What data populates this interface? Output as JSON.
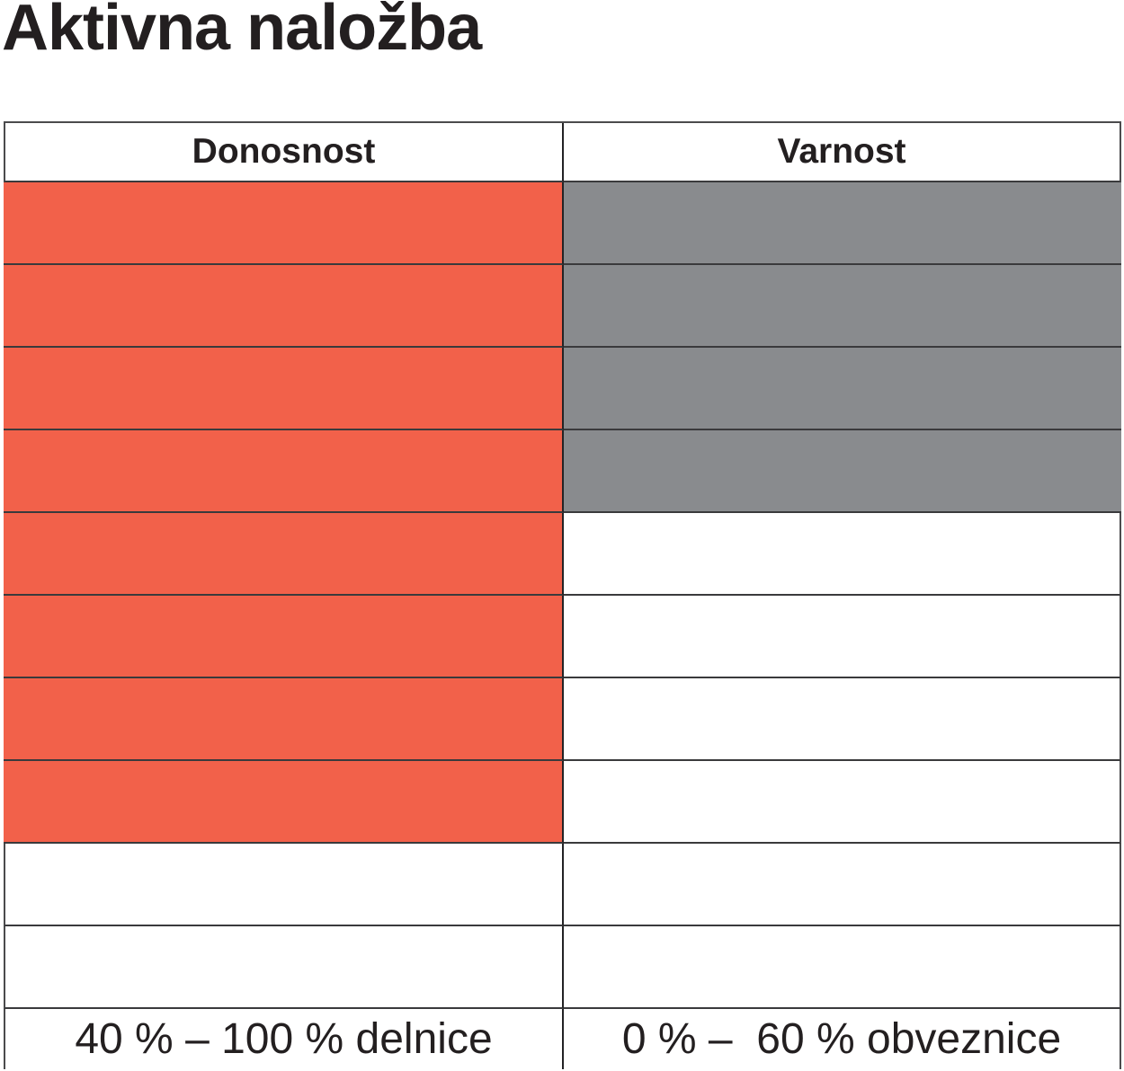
{
  "title": "Aktivna naložba",
  "colors": {
    "donosnost_fill": "#F2614A",
    "varnost_fill": "#898B8E",
    "border": "#3A3A3C",
    "text": "#231F20"
  },
  "table": {
    "header": {
      "donosnost": "Donosnost",
      "varnost": "Varnost"
    },
    "footer": {
      "donosnost": "40 % – 100 % delnice",
      "varnost": "0 % –  60 % obveznice"
    }
  },
  "chart_data": {
    "type": "table",
    "title": "Aktivna naložba",
    "categories": [
      "Donosnost",
      "Varnost"
    ],
    "rows_total": 10,
    "fill_direction": "top",
    "series": [
      {
        "name": "Donosnost",
        "filled_cells": 8,
        "of": 10,
        "fill_color": "#F2614A",
        "footer_label": "40 % – 100 % delnice"
      },
      {
        "name": "Varnost",
        "filled_cells": 4,
        "of": 10,
        "fill_color": "#898B8E",
        "footer_label": "0 % –  60 % obveznice"
      }
    ],
    "legend_position": "none",
    "grid": true
  }
}
